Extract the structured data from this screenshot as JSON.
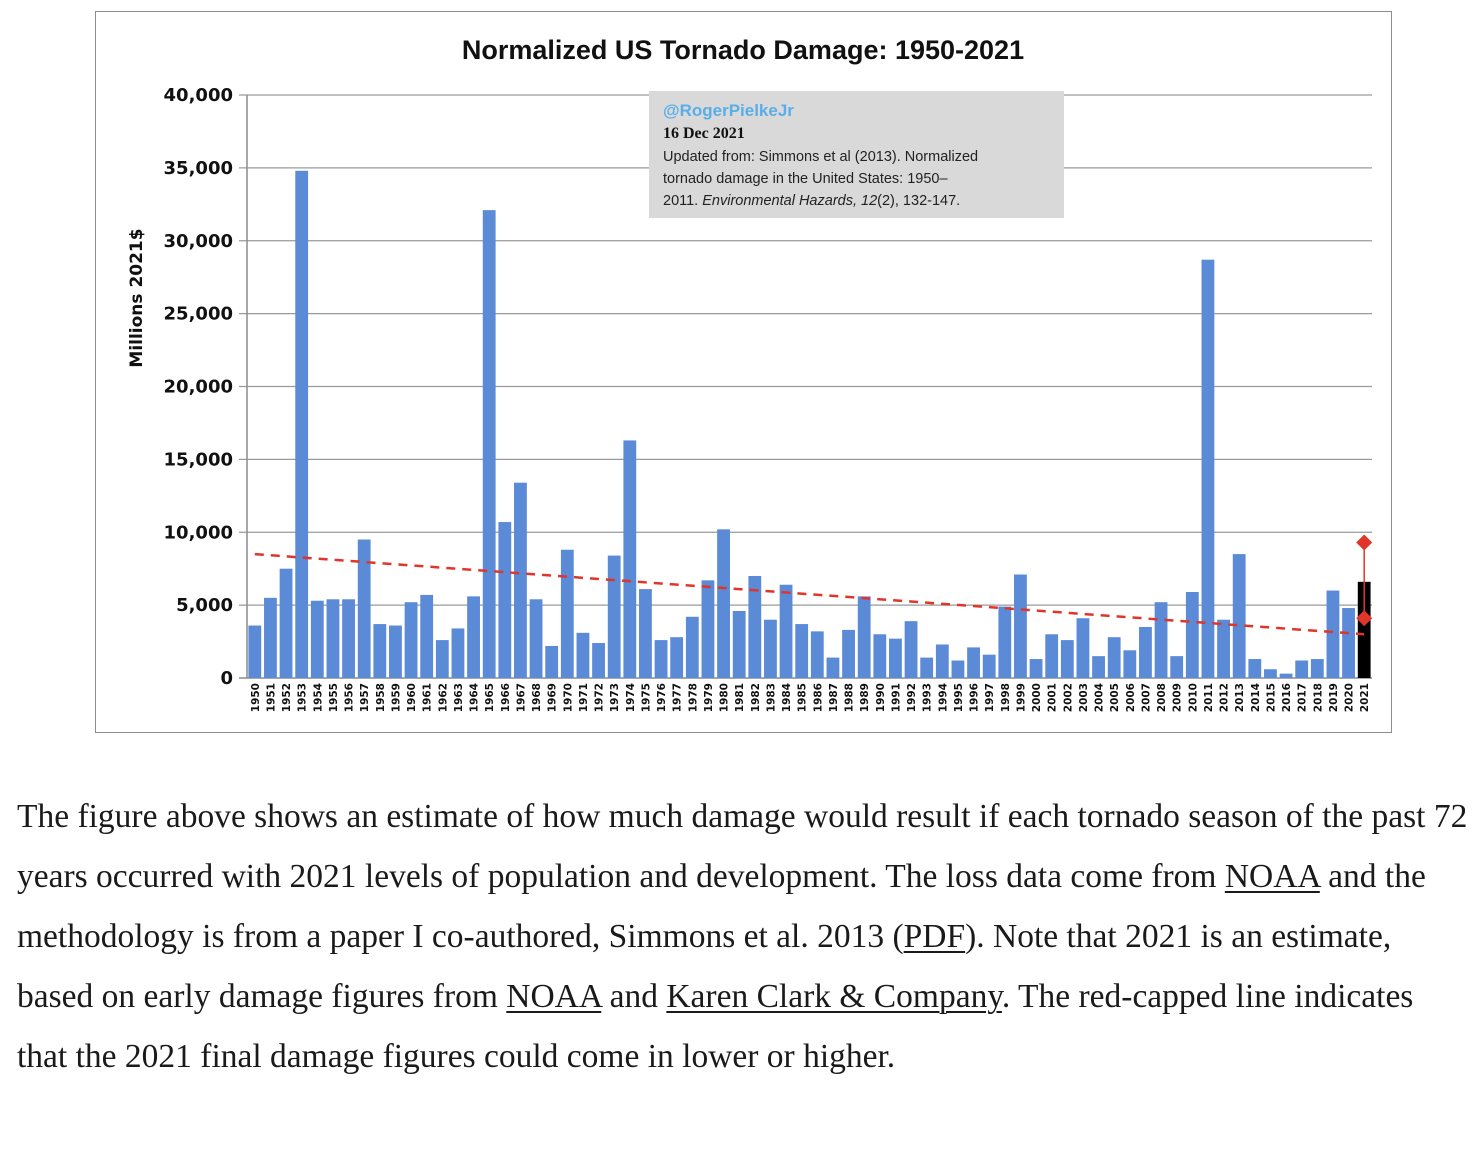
{
  "chart_data": {
    "type": "bar",
    "title": "Normalized US Tornado Damage: 1950-2021",
    "ylabel": "Millions 2021$",
    "xlabel": "",
    "ylim": [
      0,
      40000
    ],
    "yticks": [
      "0",
      "5,000",
      "10,000",
      "15,000",
      "20,000",
      "25,000",
      "30,000",
      "35,000",
      "40,000"
    ],
    "ytick_values": [
      0,
      5000,
      10000,
      15000,
      20000,
      25000,
      30000,
      35000,
      40000
    ],
    "grid": "horizontal",
    "categories": [
      "1950",
      "1951",
      "1952",
      "1953",
      "1954",
      "1955",
      "1956",
      "1957",
      "1958",
      "1959",
      "1960",
      "1961",
      "1962",
      "1963",
      "1964",
      "1965",
      "1966",
      "1967",
      "1968",
      "1969",
      "1970",
      "1971",
      "1972",
      "1973",
      "1974",
      "1975",
      "1976",
      "1977",
      "1978",
      "1979",
      "1980",
      "1981",
      "1982",
      "1983",
      "1984",
      "1985",
      "1986",
      "1987",
      "1988",
      "1989",
      "1990",
      "1991",
      "1992",
      "1993",
      "1994",
      "1995",
      "1996",
      "1997",
      "1998",
      "1999",
      "2000",
      "2001",
      "2002",
      "2003",
      "2004",
      "2005",
      "2006",
      "2007",
      "2008",
      "2009",
      "2010",
      "2011",
      "2012",
      "2013",
      "2014",
      "2015",
      "2016",
      "2017",
      "2018",
      "2019",
      "2020",
      "2021"
    ],
    "values": [
      3600,
      5500,
      7500,
      34800,
      5300,
      5400,
      5400,
      9500,
      3700,
      3600,
      5200,
      5700,
      2600,
      3400,
      5600,
      32100,
      10700,
      13400,
      5400,
      2200,
      8800,
      3100,
      2400,
      8400,
      16300,
      6100,
      2600,
      2800,
      4200,
      6700,
      10200,
      4600,
      7000,
      4000,
      6400,
      3700,
      3200,
      1400,
      3300,
      5600,
      3000,
      2700,
      3900,
      1400,
      2300,
      1200,
      2100,
      1600,
      4900,
      7100,
      1300,
      3000,
      2600,
      4100,
      1500,
      2800,
      1900,
      3500,
      5200,
      1500,
      5900,
      28700,
      4000,
      8500,
      1300,
      600,
      300,
      1200,
      1300,
      6000,
      4800,
      6600
    ],
    "bar_color": "#5b8ad6",
    "highlight": {
      "category": "2021",
      "color": "#000000"
    },
    "trendline": {
      "start": 8500,
      "end": 3000,
      "color": "#e0352b",
      "style": "dashed"
    },
    "error_bar": {
      "category": "2021",
      "low": 4100,
      "high": 9300,
      "color": "#e0352b",
      "marker": "diamond"
    },
    "annotation": {
      "handle": "@RogerPielkeJr",
      "date": "16 Dec 2021",
      "line1": "Updated from: Simmons et al (2013). Normalized",
      "line2": "tornado damage in the United States: 1950–",
      "line3_prefix": "2011. ",
      "line3_italic": "Environmental Hazards, 12",
      "line3_suffix": "(2), 132-147.",
      "bg_color": "#d9d9d9"
    }
  },
  "caption": {
    "t1": "The figure above shows an estimate of how much damage would result if each tornado season of the past 72 years occurred with 2021 levels of population and development. The loss data come from ",
    "link1": "NOAA",
    "t2": " and the methodology is from a paper I co-authored, Simmons et al. 2013 (",
    "link2": "PDF",
    "t3": "). Note that 2021 is an estimate, based on early damage figures from ",
    "link3": "NOAA",
    "t4": " and ",
    "link4": "Karen Clark & Company",
    "t5": ". The red-capped line indicates that the 2021 final damage figures could come in lower or higher."
  }
}
